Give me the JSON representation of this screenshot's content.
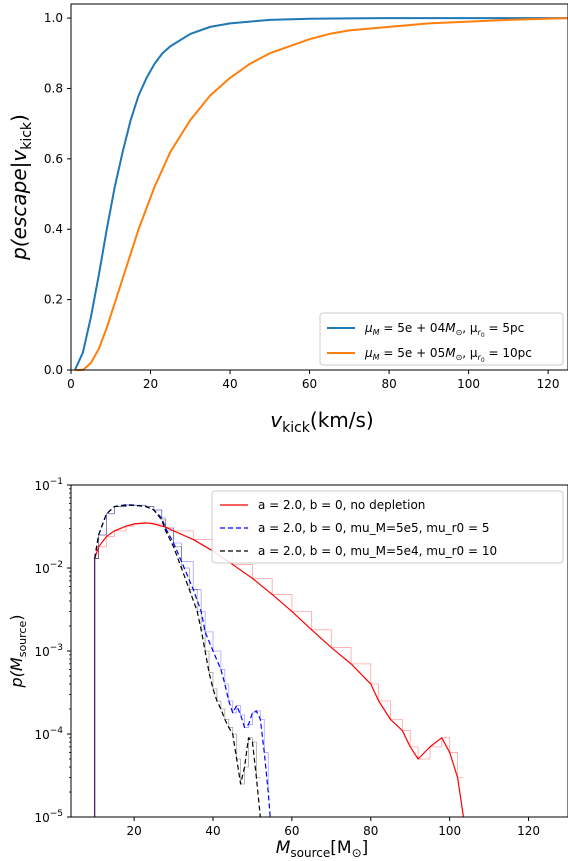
{
  "chart_data": [
    {
      "type": "line",
      "xlabel_main": "v",
      "xlabel_sub": "kick",
      "xlabel_unit": "(km/s)",
      "ylabel_main": "p(escape|v",
      "ylabel_sub": "kick",
      "ylabel_close": ")",
      "xlim": [
        0,
        125
      ],
      "ylim": [
        0,
        1.04
      ],
      "xticks": [
        0,
        20,
        40,
        60,
        80,
        100,
        120
      ],
      "yticks": [
        0.0,
        0.2,
        0.4,
        0.6,
        0.8,
        1.0
      ],
      "ytick_labels": [
        "0.0",
        "0.2",
        "0.4",
        "0.6",
        "0.8",
        "1.0"
      ],
      "legend_position": "lower right",
      "series": [
        {
          "name": "μ_M = 5e+04 M_⊙ , μ_r0 = 5pc",
          "legend_parts": [
            "μ",
            "M",
            " = 5e + 04",
            "M",
            "⊙",
            ", μ",
            "r",
            "0",
            " = 5pc"
          ],
          "color": "#1f77b4",
          "x": [
            1,
            3,
            5,
            7,
            9,
            11,
            13,
            15,
            17,
            19,
            21,
            23,
            25,
            30,
            35,
            40,
            45,
            50,
            60,
            70,
            80,
            100,
            125
          ],
          "y": [
            0.0,
            0.05,
            0.15,
            0.27,
            0.4,
            0.52,
            0.62,
            0.71,
            0.78,
            0.83,
            0.87,
            0.9,
            0.92,
            0.955,
            0.975,
            0.985,
            0.99,
            0.995,
            0.998,
            0.999,
            1.0,
            1.0,
            1.0
          ]
        },
        {
          "name": "μ_M = 5e+05 M_⊙ , μ_r0 = 10pc",
          "legend_parts": [
            "μ",
            "M",
            " = 5e + 05",
            "M",
            "⊙",
            ", μ",
            "r",
            "0",
            " = 10pc"
          ],
          "color": "#ff7f0e",
          "x": [
            1,
            3,
            5,
            7,
            9,
            11,
            13,
            15,
            17,
            19,
            21,
            23,
            25,
            30,
            35,
            40,
            45,
            50,
            55,
            60,
            65,
            70,
            80,
            90,
            100,
            110,
            125
          ],
          "y": [
            0.0,
            0.0,
            0.02,
            0.06,
            0.12,
            0.19,
            0.26,
            0.33,
            0.4,
            0.46,
            0.52,
            0.57,
            0.62,
            0.71,
            0.78,
            0.83,
            0.87,
            0.9,
            0.92,
            0.94,
            0.955,
            0.965,
            0.975,
            0.985,
            0.99,
            0.995,
            1.0
          ]
        }
      ]
    },
    {
      "type": "line",
      "xlabel_main": "M",
      "xlabel_sub": "source",
      "xlabel_unit": "[M",
      "xlabel_unit_sub": "⊙",
      "xlabel_close": "]",
      "ylabel_main": "p(M",
      "ylabel_sub": "source",
      "ylabel_close": ")",
      "yscale": "log",
      "xlim": [
        4,
        130
      ],
      "ylim": [
        1e-05,
        0.1
      ],
      "xticks": [
        20,
        40,
        60,
        80,
        100,
        120
      ],
      "yticks": [
        1e-05,
        0.0001,
        0.001,
        0.01,
        0.1
      ],
      "ytick_exps": [
        "−5",
        "−4",
        "−3",
        "−2",
        "−1"
      ],
      "ytick_base": "10",
      "legend_position": "upper right",
      "series": [
        {
          "name": "a = 2.0, b = 0, no depletion",
          "color": "#ff0000",
          "dash": "none",
          "x": [
            10,
            11,
            13,
            15,
            18,
            20,
            23,
            25,
            28,
            30,
            35,
            40,
            45,
            50,
            55,
            60,
            65,
            70,
            75,
            80,
            82,
            85,
            88,
            90,
            92,
            95,
            98,
            100,
            102,
            103.5
          ],
          "y": [
            0.013,
            0.018,
            0.024,
            0.028,
            0.032,
            0.034,
            0.035,
            0.034,
            0.031,
            0.028,
            0.022,
            0.016,
            0.011,
            0.0075,
            0.0048,
            0.003,
            0.0018,
            0.0011,
            0.0007,
            0.0004,
            0.00025,
            0.00015,
            0.00011,
            7e-05,
            5e-05,
            7e-05,
            9e-05,
            6e-05,
            3e-05,
            1e-05
          ]
        },
        {
          "name": "a = 2.0, b = 0, mu_M=5e5, mu_r0 = 5",
          "color": "#0000ff",
          "dash": "5,3",
          "x": [
            10,
            11,
            13,
            15,
            18,
            20,
            23,
            25,
            27,
            28,
            30,
            32,
            35,
            37,
            38,
            40,
            42,
            43,
            44,
            45,
            46,
            47,
            48,
            49,
            50,
            51,
            52,
            53,
            54,
            54.5
          ],
          "y": [
            0.013,
            0.025,
            0.045,
            0.055,
            0.058,
            0.057,
            0.055,
            0.05,
            0.04,
            0.03,
            0.02,
            0.012,
            0.0055,
            0.003,
            0.0017,
            0.001,
            0.0006,
            0.0004,
            0.00025,
            0.00018,
            0.00022,
            0.00017,
            0.00012,
            0.00013,
            0.00018,
            0.00019,
            0.00015,
            6e-05,
            2e-05,
            1e-05
          ]
        },
        {
          "name": "a = 2.0, b = 0, mu_M=5e4, mu_r0 = 10",
          "color": "#000000",
          "dash": "5,3",
          "x": [
            10,
            11,
            13,
            15,
            18,
            20,
            23,
            25,
            27,
            28,
            30,
            32,
            34,
            36,
            37,
            38,
            39,
            40,
            41,
            42,
            43,
            44,
            45,
            46,
            47,
            48,
            49,
            50,
            51,
            52
          ],
          "y": [
            0.013,
            0.025,
            0.045,
            0.055,
            0.057,
            0.057,
            0.055,
            0.05,
            0.038,
            0.028,
            0.018,
            0.01,
            0.0055,
            0.003,
            0.0018,
            0.001,
            0.00055,
            0.00035,
            0.00025,
            0.0002,
            0.00015,
            0.00012,
            0.0001,
            5e-05,
            2.5e-05,
            4e-05,
            9e-05,
            8e-05,
            3e-05,
            1e-05
          ]
        }
      ]
    }
  ]
}
